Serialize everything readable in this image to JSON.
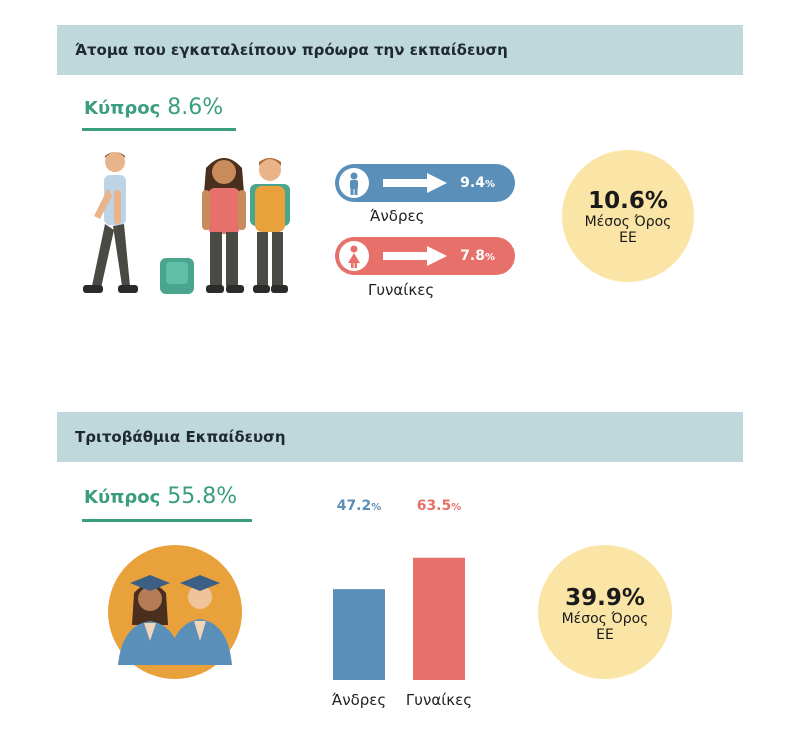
{
  "section1": {
    "title": "Άτομα που εγκαταλείπουν πρόωρα την εκπαίδευση",
    "country_name": "Κύπρος",
    "country_value": "8.6%",
    "men": {
      "label": "Άνδρες",
      "value": "9.4",
      "unit": "%",
      "color": "#5a8fba",
      "icon": "male-person-icon"
    },
    "women": {
      "label": "Γυναίκες",
      "value": "7.8",
      "unit": "%",
      "color": "#e8706a",
      "icon": "female-person-icon"
    },
    "eu": {
      "value": "10.6%",
      "line1": "Μέσος Όρος",
      "line2": "ΕΕ"
    }
  },
  "section2": {
    "title": "Τριτοβάθμια Εκπαίδευση",
    "country_name": "Κύπρος",
    "country_value": "55.8%",
    "eu": {
      "value": "39.9%",
      "line1": "Μέσος Όρος",
      "line2": "ΕΕ"
    }
  },
  "chart_data": {
    "type": "bar",
    "categories": [
      "Άνδρες",
      "Γυναίκες"
    ],
    "values": [
      47.2,
      63.5
    ],
    "value_labels": [
      "47.2",
      "63.5"
    ],
    "unit": "%",
    "colors": [
      "#5a8fba",
      "#e8706a"
    ],
    "title": "",
    "xlabel": "",
    "ylabel": "",
    "ylim": [
      0,
      80
    ]
  },
  "colors": {
    "accent": "#3a9d7f",
    "header_bg": "#bfd8dc",
    "eu_circle": "#fbe5a6",
    "graduates_circle": "#e9a23b"
  }
}
